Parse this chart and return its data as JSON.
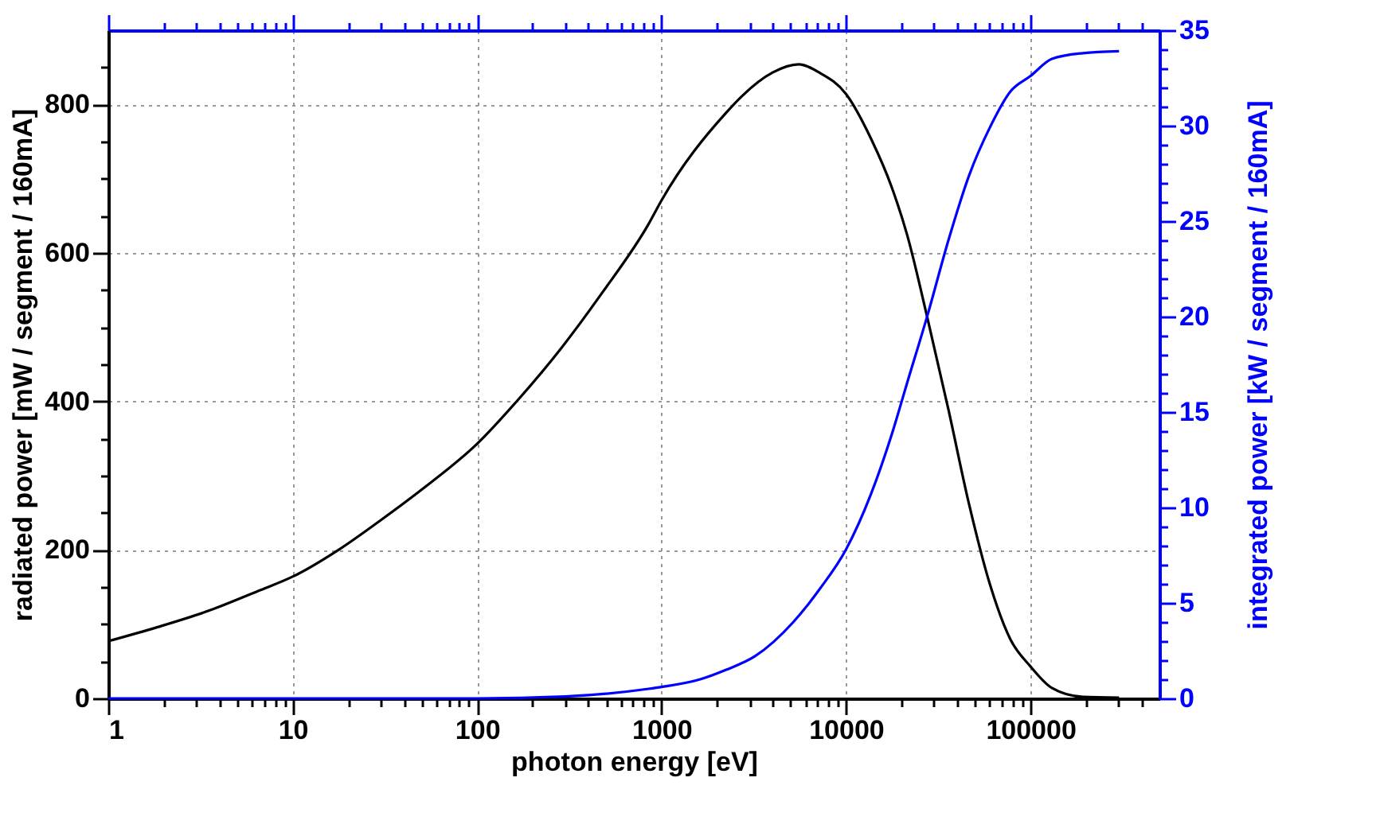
{
  "chart_data": {
    "type": "line",
    "xlabel": "photon energy  [eV]",
    "ylabel": "radiated power   [mW / segment / 160mA]",
    "y2label": "integrated power   [kW / segment / 160mA]",
    "log": "x",
    "grid": true,
    "marker": "none",
    "line_style": "solid",
    "xlim": [
      1,
      500000
    ],
    "xticks": [
      1,
      {
        "value": 2,
        "label": null
      },
      {
        "value": 3,
        "label": null
      },
      {
        "value": 4,
        "label": null
      },
      {
        "value": 5,
        "label": null
      },
      {
        "value": 6,
        "label": null
      },
      {
        "value": 7,
        "label": null
      },
      {
        "value": 8,
        "label": null
      },
      {
        "value": 9,
        "label": null
      },
      10,
      {
        "value": 20,
        "label": null
      },
      {
        "value": 30,
        "label": null
      },
      {
        "value": 40,
        "label": null
      },
      {
        "value": 50,
        "label": null
      },
      {
        "value": 60,
        "label": null
      },
      {
        "value": 70,
        "label": null
      },
      {
        "value": 80,
        "label": null
      },
      {
        "value": 90,
        "label": null
      },
      100,
      {
        "value": 200,
        "label": null
      },
      {
        "value": 300,
        "label": null
      },
      {
        "value": 400,
        "label": null
      },
      {
        "value": 500,
        "label": null
      },
      {
        "value": 600,
        "label": null
      },
      {
        "value": 700,
        "label": null
      },
      {
        "value": 800,
        "label": null
      },
      {
        "value": 900,
        "label": null
      },
      1000,
      {
        "value": 2000,
        "label": null
      },
      {
        "value": 3000,
        "label": null
      },
      {
        "value": 4000,
        "label": null
      },
      {
        "value": 5000,
        "label": null
      },
      {
        "value": 6000,
        "label": null
      },
      {
        "value": 7000,
        "label": null
      },
      {
        "value": 8000,
        "label": null
      },
      {
        "value": 9000,
        "label": null
      },
      10000,
      {
        "value": 20000,
        "label": null
      },
      {
        "value": 30000,
        "label": null
      },
      {
        "value": 40000,
        "label": null
      },
      {
        "value": 50000,
        "label": null
      },
      {
        "value": 60000,
        "label": null
      },
      {
        "value": 70000,
        "label": null
      },
      {
        "value": 80000,
        "label": null
      },
      {
        "value": 90000,
        "label": null
      },
      100000,
      {
        "value": 200000,
        "label": null
      },
      {
        "value": 300000,
        "label": null
      },
      {
        "value": 400000,
        "label": null
      }
    ],
    "ylim": [
      0,
      900
    ],
    "yticks": [
      0,
      {
        "value": 50,
        "label": null
      },
      {
        "value": 100,
        "label": null
      },
      {
        "value": 150,
        "label": null
      },
      200,
      {
        "value": 250,
        "label": null
      },
      {
        "value": 300,
        "label": null
      },
      {
        "value": 350,
        "label": null
      },
      400,
      {
        "value": 450,
        "label": null
      },
      {
        "value": 500,
        "label": null
      },
      {
        "value": 550,
        "label": null
      },
      600,
      {
        "value": 650,
        "label": null
      },
      {
        "value": 700,
        "label": null
      },
      {
        "value": 750,
        "label": null
      },
      800,
      {
        "value": 850,
        "label": null
      }
    ],
    "y2lim": [
      0,
      35
    ],
    "y2ticks": [
      0,
      {
        "value": 1,
        "label": null
      },
      {
        "value": 2,
        "label": null
      },
      {
        "value": 3,
        "label": null
      },
      {
        "value": 4,
        "label": null
      },
      5,
      {
        "value": 6,
        "label": null
      },
      {
        "value": 7,
        "label": null
      },
      {
        "value": 8,
        "label": null
      },
      {
        "value": 9,
        "label": null
      },
      10,
      {
        "value": 11,
        "label": null
      },
      {
        "value": 12,
        "label": null
      },
      {
        "value": 13,
        "label": null
      },
      {
        "value": 14,
        "label": null
      },
      15,
      {
        "value": 16,
        "label": null
      },
      {
        "value": 17,
        "label": null
      },
      {
        "value": 18,
        "label": null
      },
      {
        "value": 19,
        "label": null
      },
      20,
      {
        "value": 21,
        "label": null
      },
      {
        "value": 22,
        "label": null
      },
      {
        "value": 23,
        "label": null
      },
      {
        "value": 24,
        "label": null
      },
      25,
      {
        "value": 26,
        "label": null
      },
      {
        "value": 27,
        "label": null
      },
      {
        "value": 28,
        "label": null
      },
      {
        "value": 29,
        "label": null
      },
      30,
      {
        "value": 31,
        "label": null
      },
      {
        "value": 32,
        "label": null
      },
      {
        "value": 33,
        "label": null
      },
      {
        "value": 34,
        "label": null
      },
      35
    ],
    "series": [
      {
        "color": "#000000",
        "x": [
          1,
          1.85,
          3.5,
          6.7,
          10,
          17.7,
          29.6,
          53,
          100,
          169,
          284,
          475,
          850,
          1000,
          2240,
          2720,
          4000,
          5530,
          7160,
          10000,
          13650,
          17660,
          21400,
          27700,
          35900,
          46500,
          60200,
          78000,
          100000,
          130600,
          192000,
          302000
        ],
        "values": [
          77,
          96,
          118,
          146,
          164,
          200,
          239,
          286,
          343,
          404,
          471,
          546,
          639,
          671,
          789,
          811,
          843,
          854,
          843,
          814,
          754,
          689,
          625,
          511,
          389,
          261,
          154,
          79,
          43,
          14,
          2,
          1
        ]
      },
      {
        "color": "#0000ff",
        "axis": "y2",
        "x": [
          1,
          10,
          100,
          300,
          850,
          1000,
          1620,
          2240,
          3200,
          5180,
          7160,
          10000,
          13650,
          17660,
          21400,
          27700,
          35900,
          46500,
          60200,
          78000,
          100000,
          130600,
          192000,
          302000
        ],
        "values": [
          0,
          0,
          0,
          0.1,
          0.5,
          0.6,
          1.0,
          1.5,
          2.2,
          4.0,
          5.7,
          7.8,
          10.7,
          13.8,
          16.5,
          20.1,
          24.0,
          27.4,
          29.9,
          31.8,
          32.6,
          33.5,
          33.8,
          33.9
        ]
      }
    ]
  }
}
